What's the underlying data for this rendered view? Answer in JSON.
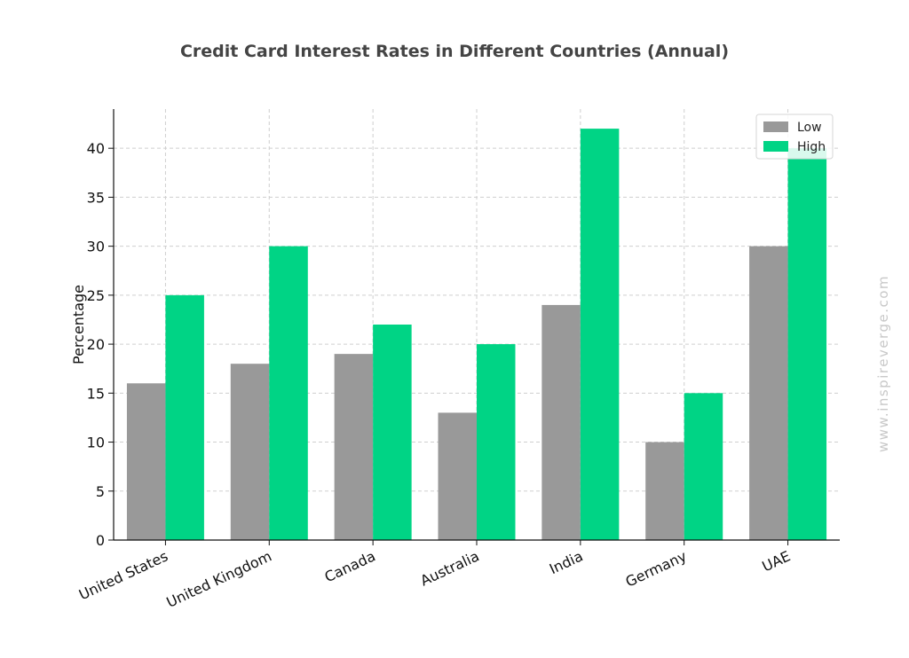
{
  "chart_data": {
    "type": "bar",
    "title": "Credit Card  Interest Rates in Different Countries (Annual)",
    "ylabel": "Percentage",
    "xlabel": "",
    "categories": [
      "United States",
      "United Kingdom",
      "Canada",
      "Australia",
      "India",
      "Germany",
      "UAE"
    ],
    "series": [
      {
        "name": "Low",
        "color": "#999999",
        "values": [
          16,
          18,
          19,
          13,
          24,
          10,
          30
        ]
      },
      {
        "name": "High",
        "color": "#00d485",
        "values": [
          25,
          30,
          22,
          20,
          42,
          15,
          40
        ]
      }
    ],
    "ylim": [
      0,
      44
    ],
    "yticks": [
      0,
      5,
      10,
      15,
      20,
      25,
      30,
      35,
      40
    ],
    "grid": true,
    "legend_position": "top-right"
  },
  "watermark": "www.inspireverge.com"
}
